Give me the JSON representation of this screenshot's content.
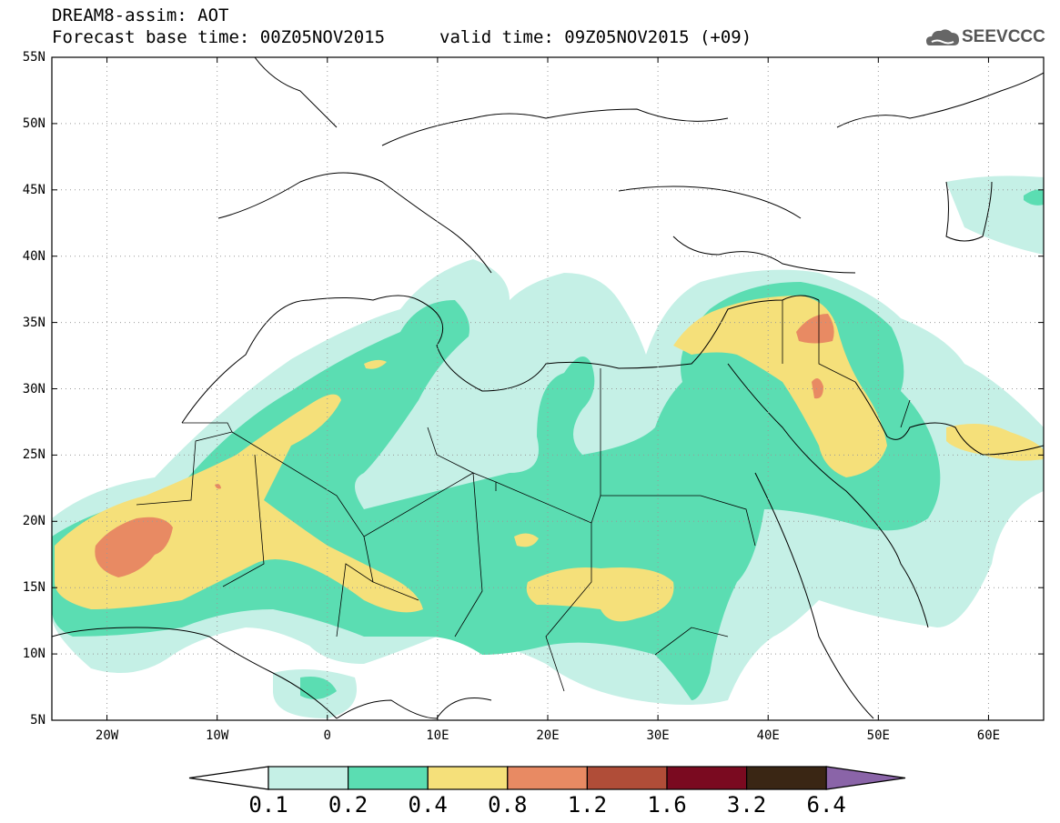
{
  "header": {
    "line1": "DREAM8-assim: AOT",
    "base_time": "Forecast base time: 00Z05NOV2015",
    "valid_time": "valid time: 09Z05NOV2015 (+09)",
    "logo_text": "SEEVCCC",
    "logo_icon": "cloud-logo-icon"
  },
  "map": {
    "lon_range": [
      -25,
      65
    ],
    "lat_range": [
      5,
      55
    ],
    "lat_labels": [
      "55N",
      "50N",
      "45N",
      "40N",
      "35N",
      "30N",
      "25N",
      "20N",
      "15N",
      "10N",
      "5N"
    ],
    "lat_values": [
      55,
      50,
      45,
      40,
      35,
      30,
      25,
      20,
      15,
      10,
      5
    ],
    "lon_labels": [
      "20W",
      "10W",
      "0",
      "10E",
      "20E",
      "30E",
      "40E",
      "50E",
      "60E"
    ],
    "lon_values": [
      -20,
      -10,
      0,
      10,
      20,
      30,
      40,
      50,
      60
    ],
    "grid": "dotted"
  },
  "colorbar": {
    "labels": [
      "0.1",
      "0.2",
      "0.4",
      "0.8",
      "1.2",
      "1.6",
      "3.2",
      "6.4"
    ],
    "colors": [
      "#ffffff",
      "#c5f0e6",
      "#5bddb2",
      "#f5e07a",
      "#e88a63",
      "#b04d38",
      "#7a0a20",
      "#3a2614",
      "#8a64a8"
    ]
  }
}
